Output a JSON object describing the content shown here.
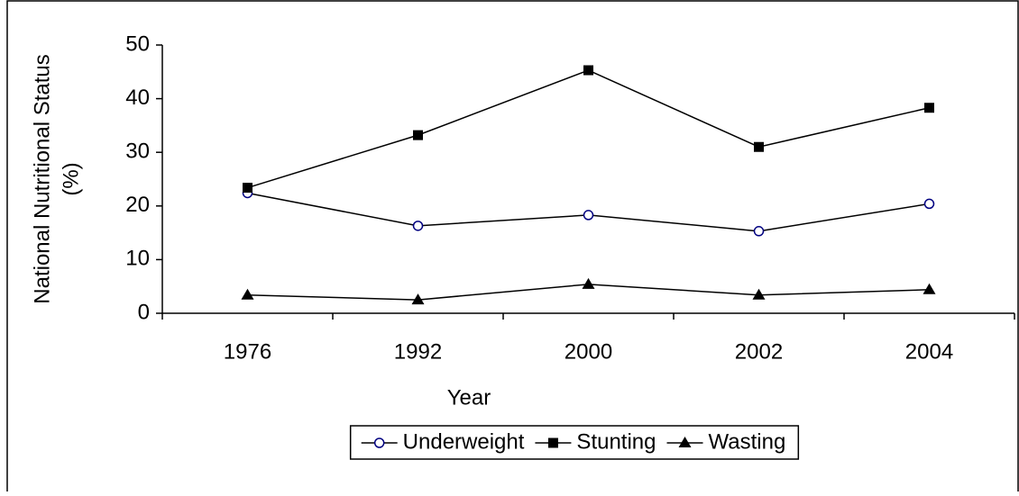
{
  "chart_data": {
    "type": "line",
    "xlabel": "Year",
    "ylabel": [
      "National Nutritional Status",
      "(%)"
    ],
    "categories": [
      "1976",
      "1992",
      "2000",
      "2002",
      "2004"
    ],
    "series": [
      {
        "name": "Underweight",
        "color": "#000080",
        "marker": "circle",
        "values": [
          22.4,
          16.3,
          18.3,
          15.3,
          20.4
        ]
      },
      {
        "name": "Stunting",
        "color": "#000000",
        "marker": "square",
        "values": [
          23.4,
          33.2,
          45.3,
          31.0,
          38.3
        ]
      },
      {
        "name": "Wasting",
        "color": "#000000",
        "marker": "triangle",
        "values": [
          3.4,
          2.5,
          5.4,
          3.4,
          4.4
        ]
      }
    ],
    "ylim": [
      0,
      50
    ],
    "yticks": [
      0,
      10,
      20,
      30,
      40,
      50
    ],
    "grid": false,
    "legend": "bottom"
  }
}
